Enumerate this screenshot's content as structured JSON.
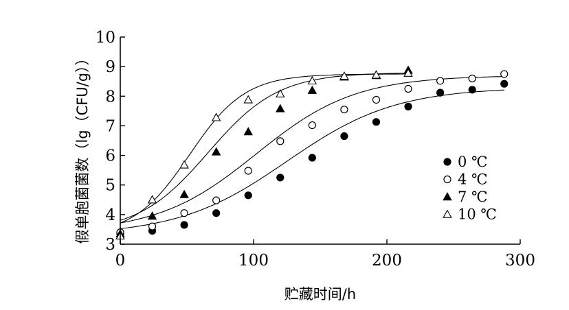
{
  "chart_data": {
    "type": "scatter",
    "title": "",
    "xlabel": "贮藏时间/h",
    "ylabel": "假单胞菌菌数（lg（CFU/g））",
    "xlim": [
      0,
      300
    ],
    "ylim": [
      3,
      10
    ],
    "x_ticks": [
      "0",
      "100",
      "200",
      "300"
    ],
    "y_ticks": [
      "3",
      "4",
      "5",
      "6",
      "7",
      "8",
      "9",
      "10"
    ],
    "grid": false,
    "legend_position": "right",
    "series": [
      {
        "name": "0 ℃",
        "marker": "filled-circle",
        "points": [
          [
            0,
            3.35
          ],
          [
            24,
            3.45
          ],
          [
            48,
            3.65
          ],
          [
            72,
            4.05
          ],
          [
            96,
            4.65
          ],
          [
            120,
            5.25
          ],
          [
            144,
            5.92
          ],
          [
            168,
            6.65
          ],
          [
            192,
            7.13
          ],
          [
            216,
            7.65
          ],
          [
            240,
            8.12
          ],
          [
            264,
            8.22
          ],
          [
            288,
            8.42
          ]
        ],
        "fit": {
          "A": 3.3,
          "C": 5.0,
          "k": 0.0245,
          "m": 125,
          "x_end": 288
        }
      },
      {
        "name": "4 ℃",
        "marker": "open-circle",
        "points": [
          [
            0,
            3.4
          ],
          [
            24,
            3.6
          ],
          [
            48,
            4.05
          ],
          [
            72,
            4.48
          ],
          [
            96,
            5.48
          ],
          [
            120,
            6.48
          ],
          [
            144,
            7.02
          ],
          [
            168,
            7.55
          ],
          [
            192,
            7.88
          ],
          [
            216,
            8.25
          ],
          [
            240,
            8.52
          ],
          [
            264,
            8.6
          ],
          [
            288,
            8.75
          ]
        ],
        "fit": {
          "A": 3.4,
          "C": 5.3,
          "k": 0.027,
          "m": 102,
          "x_end": 288
        }
      },
      {
        "name": "7 ℃",
        "marker": "filled-triangle",
        "points": [
          [
            0,
            3.35
          ],
          [
            24,
            3.95
          ],
          [
            48,
            4.68
          ],
          [
            72,
            6.12
          ],
          [
            96,
            6.8
          ],
          [
            120,
            7.58
          ],
          [
            144,
            8.2
          ],
          [
            168,
            8.65
          ],
          [
            192,
            8.7
          ],
          [
            216,
            8.88
          ]
        ],
        "fit": {
          "A": 3.4,
          "C": 5.4,
          "k": 0.038,
          "m": 66,
          "x_end": 216
        }
      },
      {
        "name": "10 ℃",
        "marker": "open-triangle",
        "points": [
          [
            0,
            3.28
          ],
          [
            24,
            4.5
          ],
          [
            48,
            5.68
          ],
          [
            72,
            7.28
          ],
          [
            96,
            7.88
          ],
          [
            120,
            8.08
          ],
          [
            144,
            8.52
          ],
          [
            168,
            8.68
          ],
          [
            192,
            8.72
          ],
          [
            216,
            8.78
          ]
        ],
        "fit": {
          "A": 3.3,
          "C": 5.45,
          "k": 0.048,
          "m": 52,
          "x_end": 216
        }
      }
    ]
  }
}
